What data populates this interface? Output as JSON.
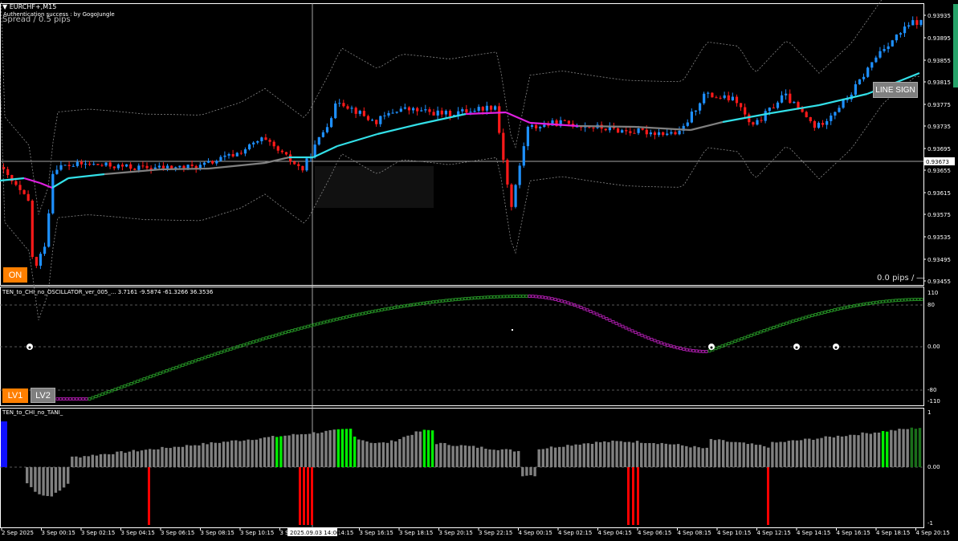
{
  "window": {
    "symbol_title": "EURCHF+,M15",
    "auth_text": "Authentication success : by GogoJungle",
    "spread_text": "Spread / 0.5 pips",
    "pips_readout": "0.0 pips / ―"
  },
  "price_axis": {
    "labels": [
      "0.93935",
      "0.93895",
      "0.93855",
      "0.93815",
      "0.93775",
      "0.93735",
      "0.93695",
      "0.93673",
      "0.93655",
      "0.93615",
      "0.93575",
      "0.93535",
      "0.93495",
      "0.93455"
    ],
    "current_price": "0.93673"
  },
  "buttons": {
    "on": "ON",
    "line_sign": "LINE SIGN",
    "lv1": "LV1",
    "lv2": "LV2"
  },
  "oscillator": {
    "title": "TEN_to_CHI_no_OSCILLATOR_ver_005_... 3.7161 -9.5874 -61.3266 36.3536",
    "levels": [
      "110",
      "80",
      "0.00",
      "-80",
      "-110"
    ]
  },
  "tani": {
    "title": "TEN_to_CHI_no_TANI_",
    "levels": [
      "1",
      "0.00",
      "-1"
    ]
  },
  "time_axis": {
    "labels": [
      "2 Sep 2025",
      "3 Sep 00:15",
      "3 Sep 02:15",
      "3 Sep 04:15",
      "3 Sep 06:15",
      "3 Sep 08:15",
      "3 Sep 10:15",
      "3 Sep 12:15",
      "3 Sep 14:15",
      "3 Sep 16:15",
      "3 Sep 18:15",
      "3 Sep 20:15",
      "3 Sep 22:15",
      "4 Sep 00:15",
      "4 Sep 02:15",
      "4 Sep 04:15",
      "4 Sep 06:15",
      "4 Sep 08:15",
      "4 Sep 10:15",
      "4 Sep 12:15",
      "4 Sep 14:15",
      "4 Sep 16:15",
      "4 Sep 18:15",
      "4 Sep 20:15"
    ],
    "crosshair_time": "2025.09.03 14:00"
  },
  "colors": {
    "bull": "#1e90ff",
    "bear": "#ff1a1a",
    "ma_up": "#33e0e8",
    "ma_down": "#e020e0",
    "ma_flat": "#808080",
    "osc_up": "#2aa52a",
    "osc_down": "#c020c0",
    "hist_gray": "#808080",
    "hist_green": "#00ee00",
    "hist_red": "#ff0000",
    "hist_blue": "#1010ff",
    "btn_orange": "#ff7f00",
    "btn_gray": "#808080"
  }
}
